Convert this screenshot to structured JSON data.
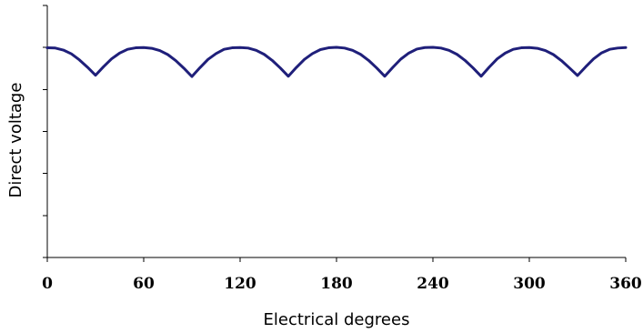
{
  "chart_data": {
    "type": "line",
    "xlabel": "Electrical degrees",
    "ylabel": "Direct voltage",
    "xlim": [
      0,
      360
    ],
    "ylim": [
      0,
      1
    ],
    "x_ticks": [
      0,
      60,
      120,
      180,
      240,
      300,
      360
    ],
    "x_tick_labels": [
      "0",
      "60",
      "120",
      "180",
      "240",
      "300",
      "360"
    ],
    "y_tick_count": 6,
    "y_tick_labels_shown": false,
    "grid": false,
    "legend": "none",
    "series": [
      {
        "color": "#1f1f7a",
        "x": [
          0,
          5,
          10,
          15,
          20,
          25,
          30,
          35,
          40,
          45,
          50,
          55,
          60,
          65,
          70,
          75,
          80,
          85,
          90,
          95,
          100,
          105,
          110,
          115,
          120,
          125,
          130,
          135,
          140,
          145,
          150,
          155,
          160,
          165,
          170,
          175,
          180,
          185,
          190,
          195,
          200,
          205,
          210,
          215,
          220,
          225,
          230,
          235,
          240,
          245,
          250,
          255,
          260,
          265,
          270,
          275,
          280,
          285,
          290,
          295,
          300,
          305,
          310,
          315,
          320,
          325,
          330,
          335,
          340,
          345,
          350,
          355,
          360
        ],
        "y": [
          0.832,
          0.831,
          0.823,
          0.808,
          0.784,
          0.755,
          0.723,
          0.757,
          0.788,
          0.811,
          0.826,
          0.832,
          0.833,
          0.83,
          0.821,
          0.805,
          0.781,
          0.751,
          0.718,
          0.753,
          0.786,
          0.809,
          0.826,
          0.832,
          0.833,
          0.831,
          0.822,
          0.806,
          0.782,
          0.752,
          0.719,
          0.754,
          0.786,
          0.809,
          0.825,
          0.832,
          0.834,
          0.831,
          0.822,
          0.806,
          0.782,
          0.752,
          0.719,
          0.754,
          0.787,
          0.811,
          0.827,
          0.833,
          0.834,
          0.831,
          0.822,
          0.806,
          0.782,
          0.752,
          0.719,
          0.755,
          0.788,
          0.811,
          0.826,
          0.832,
          0.833,
          0.83,
          0.821,
          0.805,
          0.781,
          0.752,
          0.722,
          0.756,
          0.788,
          0.812,
          0.826,
          0.831,
          0.833
        ]
      }
    ]
  }
}
